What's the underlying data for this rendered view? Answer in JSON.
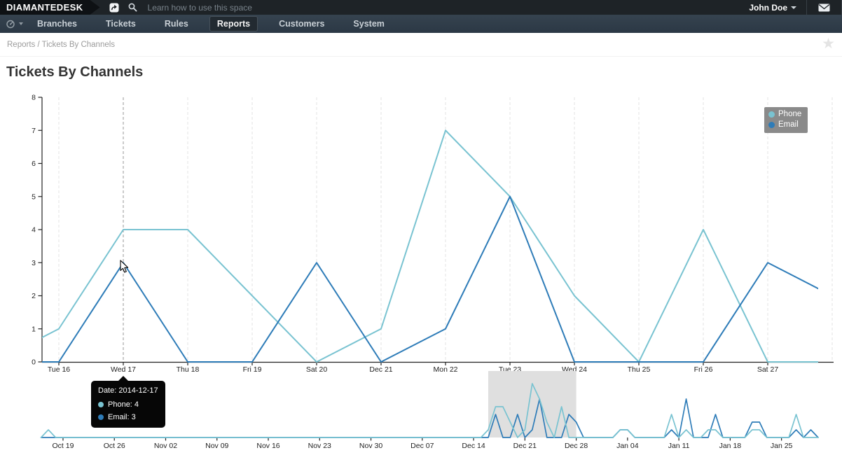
{
  "topbar": {
    "logo": "DIAMANTEDESK",
    "search_placeholder": "Learn how to use this space",
    "user": "John Doe"
  },
  "navbar": {
    "items": [
      {
        "label": "Branches",
        "active": false
      },
      {
        "label": "Tickets",
        "active": false
      },
      {
        "label": "Rules",
        "active": false
      },
      {
        "label": "Reports",
        "active": true
      },
      {
        "label": "Customers",
        "active": false
      },
      {
        "label": "System",
        "active": false
      }
    ]
  },
  "breadcrumb": {
    "path": "Reports / Tickets By Channels"
  },
  "page": {
    "title": "Tickets By Channels"
  },
  "tooltip": {
    "date": "Date: 2014-12-17",
    "phone": "Phone: 4",
    "email": "Email: 3"
  },
  "colors": {
    "phone": "#79c3d1",
    "email": "#2e7cb8",
    "grid": "#e3e3e3",
    "crosshair": "#979797",
    "axis": "#222222",
    "selection": "#dfdfdf",
    "legend_bg": "#8a8a8a",
    "tooltip_bg": "#060606"
  },
  "chart_data": [
    {
      "type": "line",
      "title": "Tickets By Channels",
      "date_range": "2014-12-15 to 2014-12-28",
      "x_labels": [
        "Tue 16",
        "Wed 17",
        "Thu 18",
        "Fri 19",
        "Sat 20",
        "Dec 21",
        "Mon 22",
        "Tue 23",
        "Wed 24",
        "Thu 25",
        "Fri 26",
        "Sat 27"
      ],
      "crosshair_label": "Wed 17",
      "y_ticks": [
        0,
        1,
        2,
        3,
        4,
        5,
        6,
        7,
        8
      ],
      "ylim": [
        0,
        8
      ],
      "grid": "vertical-dashed",
      "legend_position": "top-right",
      "series": [
        {
          "name": "Phone",
          "values": [
            0,
            1,
            4,
            4,
            2,
            0,
            1,
            7,
            5,
            2,
            0,
            4,
            0,
            0
          ]
        },
        {
          "name": "Email",
          "values": [
            0,
            0,
            3,
            0,
            0,
            3,
            0,
            1,
            5,
            0,
            0,
            0,
            3,
            2
          ]
        }
      ],
      "series_note": "daily values 2014-12-15..2014-12-28; first and last points are clipped at plot edges"
    },
    {
      "type": "line",
      "role": "range-navigator",
      "date_range": "2014-10-15 to 2015-01-30",
      "x_labels": [
        "Oct 19",
        "Oct 26",
        "Nov 02",
        "Nov 09",
        "Nov 16",
        "Nov 23",
        "Nov 30",
        "Dec 07",
        "Dec 14",
        "Dec 21",
        "Dec 28",
        "Jan 04",
        "Jan 11",
        "Jan 18",
        "Jan 25"
      ],
      "ylim": [
        0,
        8
      ],
      "selection": {
        "from": "2014-12-16",
        "to": "2014-12-28",
        "from_day": 62,
        "to_day": 74
      },
      "series": [
        {
          "name": "Phone",
          "points_day_value": [
            [
              1,
              0
            ],
            [
              2,
              1
            ],
            [
              3,
              0
            ],
            [
              61,
              0
            ],
            [
              62,
              1
            ],
            [
              63,
              4
            ],
            [
              64,
              4
            ],
            [
              65,
              2
            ],
            [
              66,
              0
            ],
            [
              67,
              1
            ],
            [
              68,
              7
            ],
            [
              69,
              5
            ],
            [
              70,
              2
            ],
            [
              71,
              0
            ],
            [
              72,
              4
            ],
            [
              73,
              0
            ],
            [
              79,
              0
            ],
            [
              80,
              1
            ],
            [
              81,
              1
            ],
            [
              82,
              0
            ],
            [
              86,
              0
            ],
            [
              87,
              3
            ],
            [
              88,
              0
            ],
            [
              89,
              1
            ],
            [
              90,
              0
            ],
            [
              91,
              0
            ],
            [
              92,
              1
            ],
            [
              93,
              1
            ],
            [
              94,
              0
            ],
            [
              97,
              0
            ],
            [
              98,
              1
            ],
            [
              99,
              1
            ],
            [
              100,
              0
            ],
            [
              103,
              0
            ],
            [
              104,
              3
            ],
            [
              105,
              0
            ],
            [
              107,
              0
            ]
          ]
        },
        {
          "name": "Email",
          "points_day_value": [
            [
              1,
              0
            ],
            [
              62,
              0
            ],
            [
              63,
              3
            ],
            [
              64,
              0
            ],
            [
              65,
              0
            ],
            [
              66,
              3
            ],
            [
              67,
              0
            ],
            [
              68,
              1
            ],
            [
              69,
              5
            ],
            [
              70,
              0
            ],
            [
              72,
              0
            ],
            [
              73,
              3
            ],
            [
              74,
              2
            ],
            [
              75,
              0
            ],
            [
              79,
              0
            ],
            [
              80,
              1
            ],
            [
              81,
              1
            ],
            [
              82,
              0
            ],
            [
              86,
              0
            ],
            [
              87,
              1
            ],
            [
              88,
              0
            ],
            [
              89,
              5
            ],
            [
              90,
              0
            ],
            [
              92,
              0
            ],
            [
              93,
              3
            ],
            [
              94,
              0
            ],
            [
              97,
              0
            ],
            [
              98,
              2
            ],
            [
              99,
              2
            ],
            [
              100,
              0
            ],
            [
              103,
              0
            ],
            [
              104,
              1
            ],
            [
              105,
              0
            ],
            [
              106,
              1
            ],
            [
              107,
              0
            ]
          ]
        }
      ],
      "points_note": "[day_offset_from_2014-10-15, value]; straight segments between listed vertices"
    }
  ]
}
